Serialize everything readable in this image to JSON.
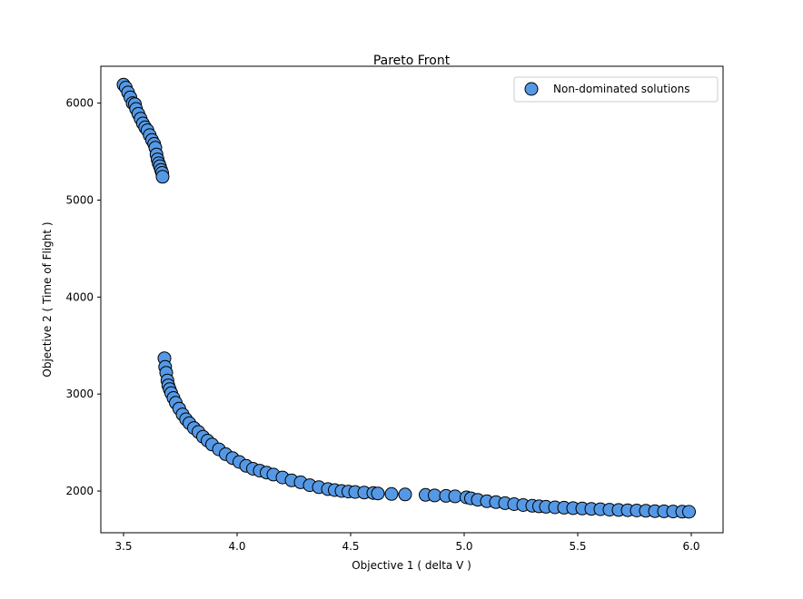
{
  "chart_data": {
    "type": "scatter",
    "title": "Pareto Front",
    "xlabel": "Objective 1   ( delta V )",
    "ylabel": "Objective 2   ( Time of Flight )",
    "xlim": [
      3.4,
      6.14
    ],
    "ylim": [
      1570,
      6380
    ],
    "xticks": [
      3.5,
      4.0,
      4.5,
      5.0,
      5.5,
      6.0
    ],
    "xtick_labels": [
      "3.5",
      "4.0",
      "4.5",
      "5.0",
      "5.5",
      "6.0"
    ],
    "yticks": [
      2000,
      3000,
      4000,
      5000,
      6000
    ],
    "ytick_labels": [
      "2000",
      "3000",
      "4000",
      "5000",
      "6000"
    ],
    "legend_position": "top-right",
    "marker_fill": "#5599e6",
    "marker_edge": "#000000",
    "series": [
      {
        "name": "Non-dominated solutions",
        "points": [
          [
            3.5,
            6190
          ],
          [
            3.51,
            6160
          ],
          [
            3.52,
            6110
          ],
          [
            3.53,
            6060
          ],
          [
            3.54,
            6000
          ],
          [
            3.55,
            5990
          ],
          [
            3.555,
            5940
          ],
          [
            3.565,
            5890
          ],
          [
            3.575,
            5840
          ],
          [
            3.585,
            5790
          ],
          [
            3.595,
            5750
          ],
          [
            3.605,
            5720
          ],
          [
            3.615,
            5670
          ],
          [
            3.625,
            5620
          ],
          [
            3.635,
            5580
          ],
          [
            3.64,
            5540
          ],
          [
            3.645,
            5470
          ],
          [
            3.65,
            5420
          ],
          [
            3.655,
            5380
          ],
          [
            3.66,
            5350
          ],
          [
            3.665,
            5310
          ],
          [
            3.67,
            5280
          ],
          [
            3.672,
            5240
          ],
          [
            3.68,
            3370
          ],
          [
            3.683,
            3280
          ],
          [
            3.688,
            3220
          ],
          [
            3.693,
            3140
          ],
          [
            3.697,
            3090
          ],
          [
            3.703,
            3050
          ],
          [
            3.71,
            3010
          ],
          [
            3.72,
            2960
          ],
          [
            3.73,
            2910
          ],
          [
            3.745,
            2850
          ],
          [
            3.76,
            2790
          ],
          [
            3.775,
            2740
          ],
          [
            3.79,
            2700
          ],
          [
            3.81,
            2650
          ],
          [
            3.83,
            2610
          ],
          [
            3.85,
            2560
          ],
          [
            3.87,
            2520
          ],
          [
            3.89,
            2480
          ],
          [
            3.92,
            2430
          ],
          [
            3.95,
            2380
          ],
          [
            3.98,
            2340
          ],
          [
            4.01,
            2300
          ],
          [
            4.04,
            2260
          ],
          [
            4.07,
            2230
          ],
          [
            4.1,
            2210
          ],
          [
            4.13,
            2190
          ],
          [
            4.16,
            2170
          ],
          [
            4.2,
            2140
          ],
          [
            4.24,
            2110
          ],
          [
            4.28,
            2090
          ],
          [
            4.32,
            2060
          ],
          [
            4.36,
            2040
          ],
          [
            4.4,
            2020
          ],
          [
            4.43,
            2010
          ],
          [
            4.46,
            2000
          ],
          [
            4.49,
            1995
          ],
          [
            4.52,
            1990
          ],
          [
            4.56,
            1985
          ],
          [
            4.6,
            1980
          ],
          [
            4.62,
            1975
          ],
          [
            4.68,
            1970
          ],
          [
            4.74,
            1965
          ],
          [
            4.83,
            1960
          ],
          [
            4.87,
            1955
          ],
          [
            4.92,
            1950
          ],
          [
            4.96,
            1945
          ],
          [
            5.01,
            1935
          ],
          [
            5.03,
            1925
          ],
          [
            5.06,
            1910
          ],
          [
            5.1,
            1895
          ],
          [
            5.14,
            1885
          ],
          [
            5.18,
            1875
          ],
          [
            5.22,
            1865
          ],
          [
            5.26,
            1855
          ],
          [
            5.3,
            1848
          ],
          [
            5.33,
            1842
          ],
          [
            5.36,
            1838
          ],
          [
            5.4,
            1832
          ],
          [
            5.44,
            1828
          ],
          [
            5.48,
            1824
          ],
          [
            5.52,
            1820
          ],
          [
            5.56,
            1816
          ],
          [
            5.6,
            1812
          ],
          [
            5.64,
            1808
          ],
          [
            5.68,
            1805
          ],
          [
            5.72,
            1802
          ],
          [
            5.76,
            1799
          ],
          [
            5.8,
            1796
          ],
          [
            5.84,
            1793
          ],
          [
            5.88,
            1791
          ],
          [
            5.92,
            1789
          ],
          [
            5.96,
            1787
          ],
          [
            5.99,
            1786
          ]
        ]
      }
    ]
  }
}
